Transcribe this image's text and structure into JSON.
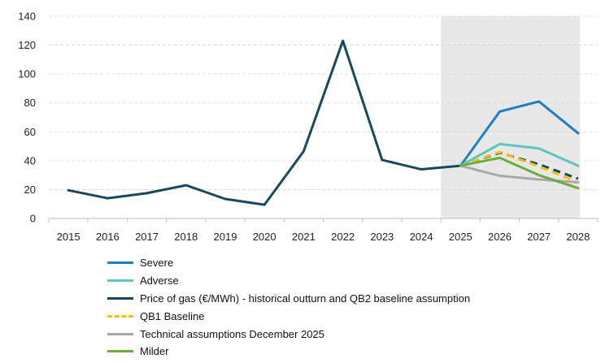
{
  "chart_data": {
    "type": "line",
    "x": [
      "2015",
      "2016",
      "2017",
      "2018",
      "2019",
      "2020",
      "2021",
      "2022",
      "2023",
      "2024",
      "2025",
      "2026",
      "2027",
      "2028"
    ],
    "ylim": [
      0,
      140
    ],
    "yticks": [
      0,
      20,
      40,
      60,
      80,
      100,
      120,
      140
    ],
    "grid": true,
    "shaded_region": {
      "from": "2025",
      "to": "2028",
      "color": "#e8e8e8"
    },
    "legend_position": "bottom",
    "series": [
      {
        "name": "Severe",
        "color": "#1f7fc4",
        "dashed": false,
        "x": [
          "2025",
          "2026",
          "2027",
          "2028"
        ],
        "values": [
          36.5,
          74,
          81,
          59
        ]
      },
      {
        "name": "Adverse",
        "color": "#5cc6c0",
        "dashed": false,
        "x": [
          "2025",
          "2026",
          "2027",
          "2028"
        ],
        "values": [
          36.5,
          51.5,
          48.5,
          36.5
        ]
      },
      {
        "name": "Price of gas (€/MWh) - historical outturn  and QB2 baseline assumption",
        "color": "#17495e",
        "dashed": false,
        "x": [
          "2015",
          "2016",
          "2017",
          "2018",
          "2019",
          "2020",
          "2021",
          "2022",
          "2023",
          "2024",
          "2025"
        ],
        "values": [
          19.5,
          14,
          17.5,
          23,
          13.5,
          9.5,
          46.5,
          123,
          40.5,
          34,
          36.5
        ]
      },
      {
        "name": "",
        "color": "#17495e",
        "dashed": true,
        "x": [
          "2025",
          "2026",
          "2027",
          "2028"
        ],
        "values": [
          36.5,
          45.5,
          37.5,
          27.5
        ]
      },
      {
        "name": "QB1 Baseline",
        "color": "#f5c200",
        "dashed": true,
        "x": [
          "2025",
          "2026",
          "2027",
          "2028"
        ],
        "values": [
          36.5,
          46,
          36,
          25
        ]
      },
      {
        "name": "Technical assumptions December 2025",
        "color": "#a9a9a9",
        "dashed": false,
        "x": [
          "2025",
          "2026",
          "2027",
          "2028"
        ],
        "values": [
          36.5,
          29.5,
          27,
          25
        ]
      },
      {
        "name": "Milder",
        "color": "#6aad3d",
        "dashed": false,
        "x": [
          "2025",
          "2026",
          "2027",
          "2028"
        ],
        "values": [
          36.5,
          42,
          30,
          21
        ]
      }
    ],
    "legend": [
      {
        "name": "Severe",
        "color": "#1f7fc4",
        "dashed": false
      },
      {
        "name": "Adverse",
        "color": "#5cc6c0",
        "dashed": false
      },
      {
        "name": "Price of gas (€/MWh) - historical outturn  and QB2 baseline assumption",
        "color": "#17495e",
        "dashed": false
      },
      {
        "name": "QB1 Baseline",
        "color": "#f5c200",
        "dashed": true
      },
      {
        "name": "Technical assumptions December 2025",
        "color": "#a9a9a9",
        "dashed": false
      },
      {
        "name": "Milder",
        "color": "#6aad3d",
        "dashed": false
      }
    ]
  }
}
